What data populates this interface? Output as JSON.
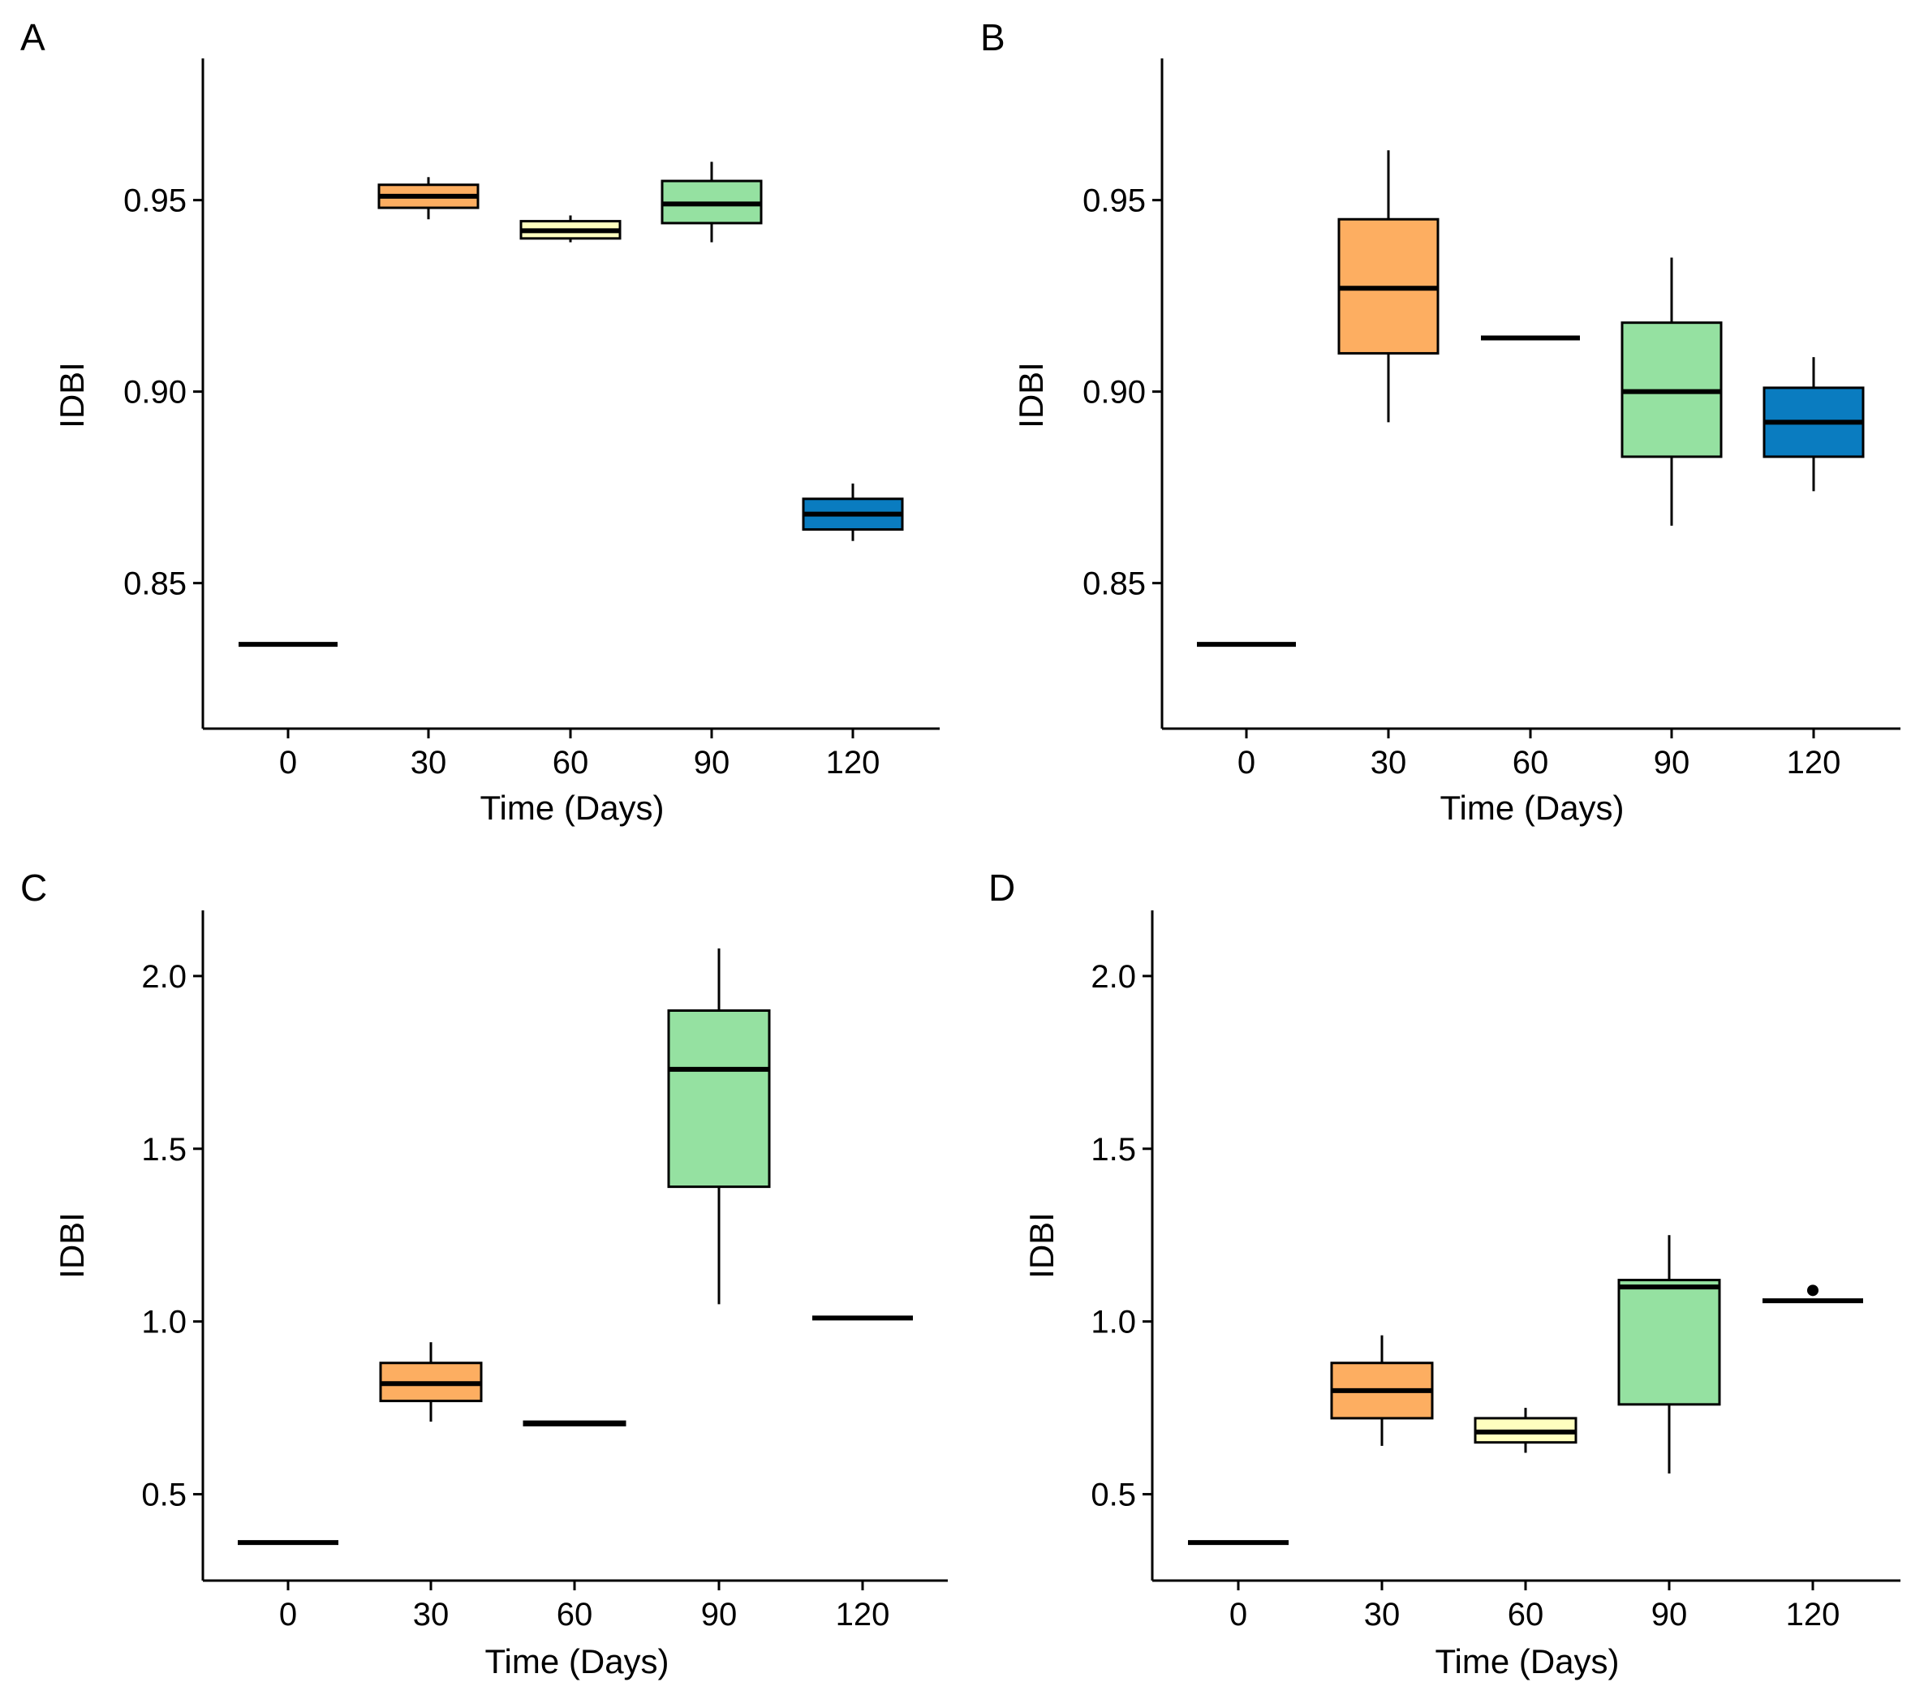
{
  "figure": {
    "colors": {
      "0": "#000000",
      "30": "#FDAE61",
      "60": "#FFFFBF",
      "90": "#95E1A1",
      "120": "#0A7CC0"
    }
  },
  "chart_data": [
    {
      "panel": "A",
      "type": "box",
      "xlabel": "Time (Days)",
      "ylabel": "IDBI",
      "categories": [
        "0",
        "30",
        "60",
        "90",
        "120"
      ],
      "ylim": [
        0.812,
        0.987
      ],
      "yticks": [
        0.85,
        0.9,
        0.95
      ],
      "ytick_labels": [
        "0.85",
        "0.90",
        "0.95"
      ],
      "boxes": [
        {
          "x": "0",
          "min": 0.834,
          "q1": 0.834,
          "median": 0.834,
          "q3": 0.834,
          "max": 0.834,
          "color": "#000000"
        },
        {
          "x": "30",
          "min": 0.945,
          "q1": 0.948,
          "median": 0.951,
          "q3": 0.954,
          "max": 0.956,
          "color": "#FDAE61"
        },
        {
          "x": "60",
          "min": 0.939,
          "q1": 0.94,
          "median": 0.942,
          "q3": 0.9445,
          "max": 0.946,
          "color": "#FFFFBF"
        },
        {
          "x": "90",
          "min": 0.939,
          "q1": 0.944,
          "median": 0.949,
          "q3": 0.955,
          "max": 0.96,
          "color": "#95E1A1"
        },
        {
          "x": "120",
          "min": 0.861,
          "q1": 0.864,
          "median": 0.868,
          "q3": 0.872,
          "max": 0.876,
          "color": "#0A7CC0"
        }
      ]
    },
    {
      "panel": "B",
      "type": "box",
      "xlabel": "Time (Days)",
      "ylabel": "IDBI",
      "categories": [
        "0",
        "30",
        "60",
        "90",
        "120"
      ],
      "ylim": [
        0.812,
        0.987
      ],
      "yticks": [
        0.85,
        0.9,
        0.95
      ],
      "ytick_labels": [
        "0.85",
        "0.90",
        "0.95"
      ],
      "boxes": [
        {
          "x": "0",
          "min": 0.834,
          "q1": 0.834,
          "median": 0.834,
          "q3": 0.834,
          "max": 0.834,
          "color": "#000000"
        },
        {
          "x": "30",
          "min": 0.892,
          "q1": 0.91,
          "median": 0.927,
          "q3": 0.945,
          "max": 0.963,
          "color": "#FDAE61"
        },
        {
          "x": "60",
          "min": 0.914,
          "q1": 0.914,
          "median": 0.914,
          "q3": 0.914,
          "max": 0.914,
          "color": "#FFFFBF"
        },
        {
          "x": "90",
          "min": 0.865,
          "q1": 0.883,
          "median": 0.9,
          "q3": 0.918,
          "max": 0.935,
          "color": "#95E1A1"
        },
        {
          "x": "120",
          "min": 0.874,
          "q1": 0.883,
          "median": 0.892,
          "q3": 0.901,
          "max": 0.909,
          "color": "#0A7CC0"
        }
      ]
    },
    {
      "panel": "C",
      "type": "box",
      "xlabel": "Time (Days)",
      "ylabel": "IDBI",
      "categories": [
        "0",
        "30",
        "60",
        "90",
        "120"
      ],
      "ylim": [
        0.25,
        2.19
      ],
      "yticks": [
        0.5,
        1.0,
        1.5,
        2.0
      ],
      "ytick_labels": [
        "0.5",
        "1.0",
        "1.5",
        "2.0"
      ],
      "boxes": [
        {
          "x": "0",
          "min": 0.36,
          "q1": 0.36,
          "median": 0.36,
          "q3": 0.36,
          "max": 0.36,
          "color": "#000000"
        },
        {
          "x": "30",
          "min": 0.71,
          "q1": 0.77,
          "median": 0.82,
          "q3": 0.88,
          "max": 0.94,
          "color": "#FDAE61"
        },
        {
          "x": "60",
          "min": 0.7,
          "q1": 0.7,
          "median": 0.705,
          "q3": 0.71,
          "max": 0.71,
          "color": "#FFFFBF"
        },
        {
          "x": "90",
          "min": 1.05,
          "q1": 1.39,
          "median": 1.73,
          "q3": 1.9,
          "max": 2.08,
          "color": "#95E1A1"
        },
        {
          "x": "120",
          "min": 1.01,
          "q1": 1.01,
          "median": 1.01,
          "q3": 1.01,
          "max": 1.01,
          "color": "#0A7CC0"
        }
      ]
    },
    {
      "panel": "D",
      "type": "box",
      "xlabel": "Time (Days)",
      "ylabel": "IDBI",
      "categories": [
        "0",
        "30",
        "60",
        "90",
        "120"
      ],
      "ylim": [
        0.25,
        2.19
      ],
      "yticks": [
        0.5,
        1.0,
        1.5,
        2.0
      ],
      "ytick_labels": [
        "0.5",
        "1.0",
        "1.5",
        "2.0"
      ],
      "boxes": [
        {
          "x": "0",
          "min": 0.36,
          "q1": 0.36,
          "median": 0.36,
          "q3": 0.36,
          "max": 0.36,
          "color": "#000000"
        },
        {
          "x": "30",
          "min": 0.64,
          "q1": 0.72,
          "median": 0.8,
          "q3": 0.88,
          "max": 0.96,
          "color": "#FDAE61"
        },
        {
          "x": "60",
          "min": 0.62,
          "q1": 0.65,
          "median": 0.68,
          "q3": 0.72,
          "max": 0.75,
          "color": "#FFFFBF"
        },
        {
          "x": "90",
          "min": 0.56,
          "q1": 0.76,
          "median": 1.1,
          "q3": 1.12,
          "max": 1.25,
          "color": "#95E1A1"
        },
        {
          "x": "120",
          "min": 1.06,
          "q1": 1.06,
          "median": 1.06,
          "q3": 1.06,
          "max": 1.06,
          "color": "#0A7CC0",
          "outliers": [
            1.09
          ]
        }
      ]
    }
  ]
}
